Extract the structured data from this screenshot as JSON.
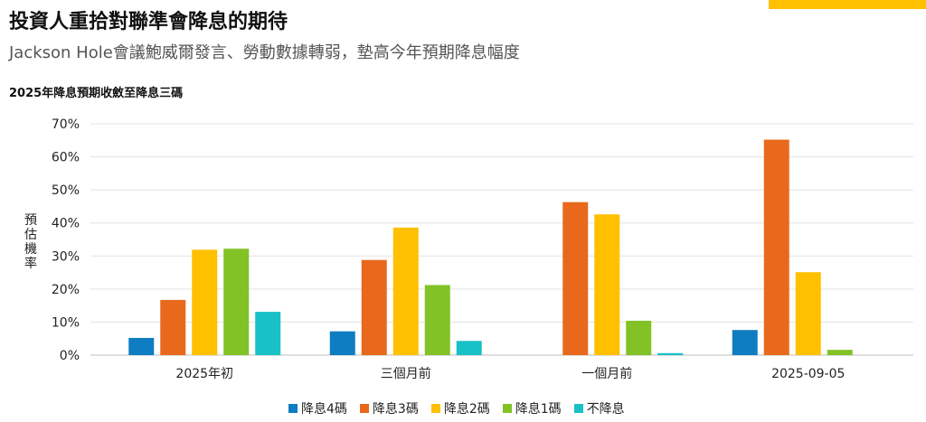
{
  "header": {
    "title": "投資人重拾對聯準會降息的期待",
    "subtitle": "Jackson Hole會議鮑威爾發言、勞動數據轉弱，墊高今年預期降息幅度"
  },
  "colors": {
    "accent": "#FFC000"
  },
  "chart_data": {
    "type": "bar",
    "title": "2025年降息預期收斂至降息三碼",
    "ylabel": "預估機率",
    "xlabel": "",
    "ylim": [
      0,
      70
    ],
    "yticks": [
      "0%",
      "10%",
      "20%",
      "30%",
      "40%",
      "50%",
      "60%",
      "70%"
    ],
    "grid": true,
    "legend_position": "bottom",
    "categories": [
      "2025年初",
      "三個月前",
      "一個月前",
      "2025-09-05"
    ],
    "series": [
      {
        "name": "降息4碼",
        "color": "#0F7DC2",
        "values": [
          5.2,
          7.2,
          0,
          7.6
        ]
      },
      {
        "name": "降息3碼",
        "color": "#E8691B",
        "values": [
          16.7,
          28.8,
          46.3,
          65.2
        ]
      },
      {
        "name": "降息2碼",
        "color": "#FFC000",
        "values": [
          31.9,
          38.6,
          42.6,
          25.1
        ]
      },
      {
        "name": "降息1碼",
        "color": "#82C226",
        "values": [
          32.2,
          21.2,
          10.4,
          1.6
        ]
      },
      {
        "name": "不降息",
        "color": "#17C1C6",
        "values": [
          13.1,
          4.3,
          0.6,
          0
        ]
      }
    ]
  }
}
